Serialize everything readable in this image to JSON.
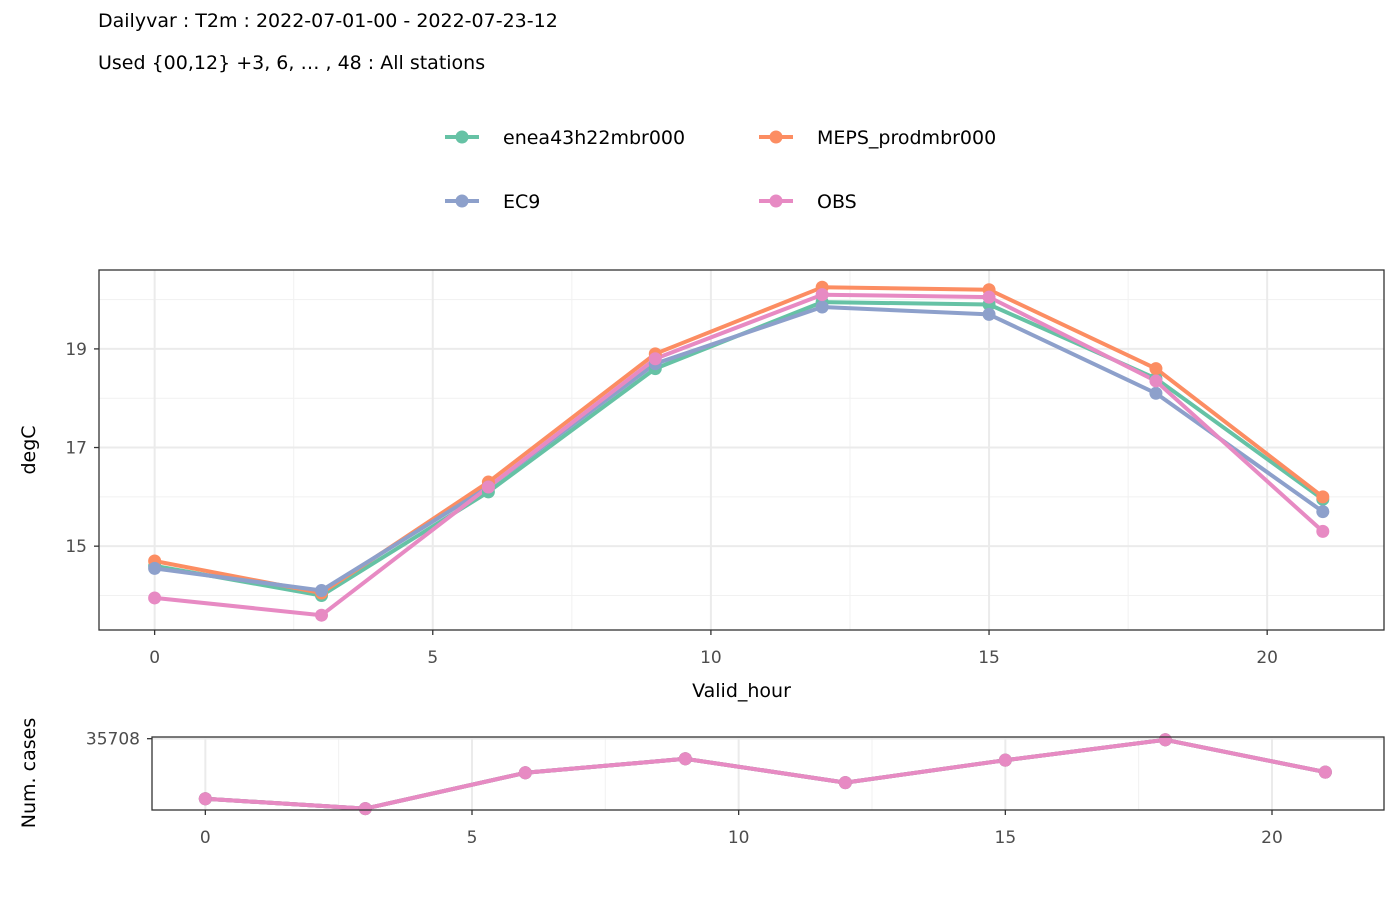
{
  "header": {
    "title": "Dailyvar : T2m : 2022-07-01-00 - 2022-07-23-12",
    "subtitle": "Used {00,12} +3, 6, … , 48 : All stations"
  },
  "chart_data": [
    {
      "type": "line",
      "xlabel": "Valid_hour",
      "ylabel": "degC",
      "x": [
        0,
        3,
        6,
        9,
        12,
        15,
        18,
        21
      ],
      "xlim": [
        -1,
        22.1
      ],
      "ylim": [
        13.3,
        20.6
      ],
      "xticks": [
        0,
        5,
        10,
        15,
        20
      ],
      "yticks": [
        15,
        17,
        19
      ],
      "grid": true,
      "legend_position": "top",
      "series": [
        {
          "name": "enea43h22mbr000",
          "color": "#66C2A5",
          "values": [
            14.6,
            14.0,
            16.1,
            18.6,
            19.95,
            19.9,
            18.4,
            15.95
          ]
        },
        {
          "name": "MEPS_prodmbr000",
          "color": "#FC8D62",
          "values": [
            14.7,
            14.05,
            16.3,
            18.9,
            20.25,
            20.2,
            18.6,
            16.0
          ]
        },
        {
          "name": "EC9",
          "color": "#8DA0CB",
          "values": [
            14.55,
            14.1,
            16.2,
            18.7,
            19.85,
            19.7,
            18.1,
            15.7
          ]
        },
        {
          "name": "OBS",
          "color": "#E78AC3",
          "values": [
            13.95,
            13.6,
            16.2,
            18.8,
            20.1,
            20.05,
            18.35,
            15.3
          ]
        }
      ]
    },
    {
      "type": "line",
      "xlabel": "",
      "ylabel": "Num. cases",
      "x": [
        0,
        3,
        6,
        9,
        12,
        15,
        18,
        21
      ],
      "xlim": [
        -1,
        22.1
      ],
      "ylim": [
        35200,
        35720
      ],
      "xticks": [
        0,
        5,
        10,
        15,
        20
      ],
      "yticks": [
        35708
      ],
      "grid": true,
      "series": [
        {
          "name": "enea43h22mbr000",
          "color": "#66C2A5",
          "values": [
            35280,
            35210,
            35465,
            35565,
            35395,
            35555,
            35700,
            35470
          ]
        },
        {
          "name": "MEPS_prodmbr000",
          "color": "#FC8D62",
          "values": [
            35280,
            35210,
            35465,
            35565,
            35395,
            35555,
            35700,
            35470
          ]
        },
        {
          "name": "EC9",
          "color": "#8DA0CB",
          "values": [
            35280,
            35210,
            35465,
            35565,
            35395,
            35555,
            35700,
            35470
          ]
        },
        {
          "name": "OBS",
          "color": "#E78AC3",
          "values": [
            35280,
            35210,
            35465,
            35565,
            35395,
            35555,
            35700,
            35470
          ]
        }
      ]
    }
  ]
}
